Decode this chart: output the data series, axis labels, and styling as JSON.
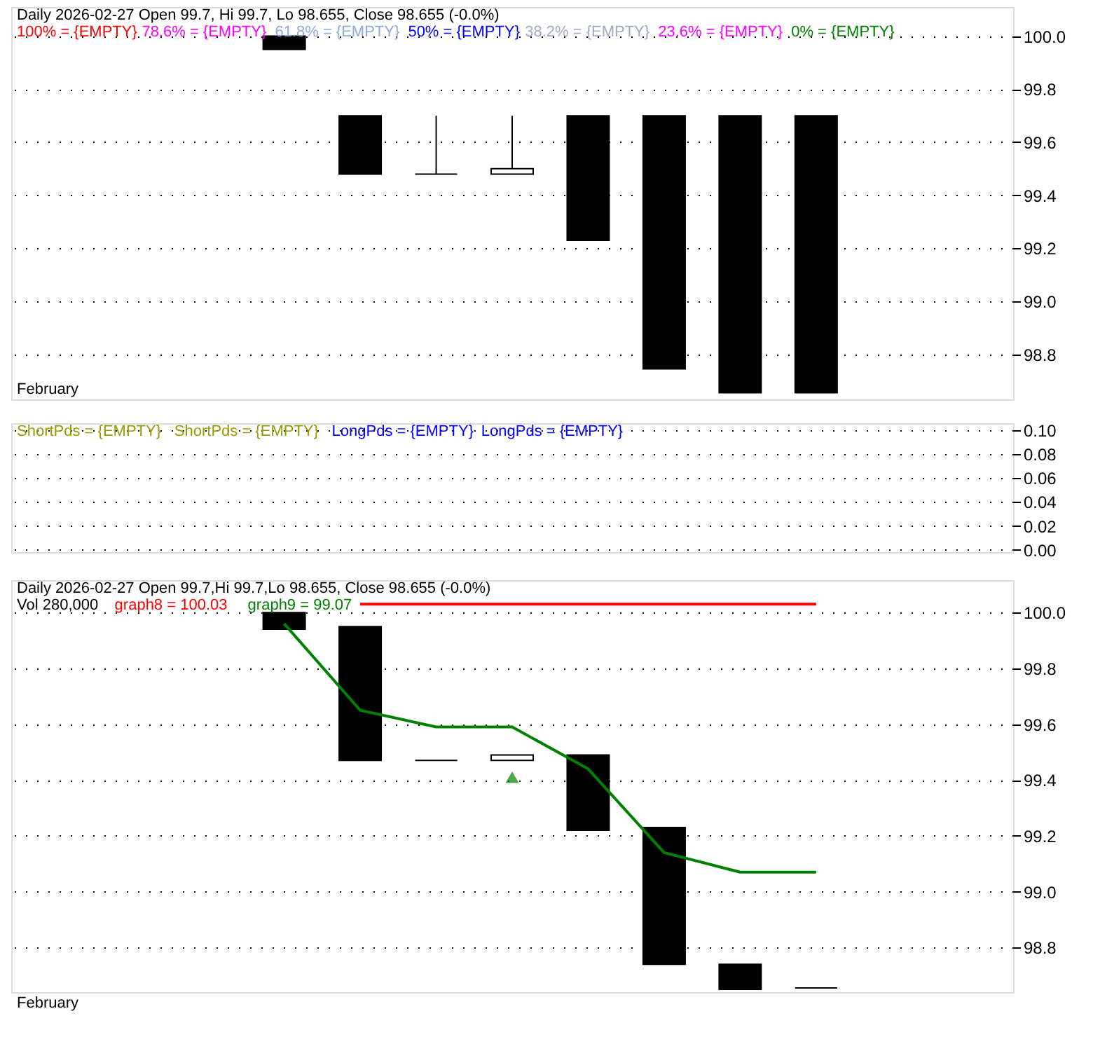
{
  "chart_data": [
    {
      "type": "candlestick",
      "title": "Daily 2026-02-27 Open 99.7, Hi 99.7, Lo 98.655, Close 98.655 (-0.0%)",
      "annotations": [
        "February"
      ],
      "categories": [
        null,
        null,
        null,
        null,
        null,
        null,
        null,
        null,
        null,
        null,
        null,
        null,
        null
      ],
      "ohlc": [
        null,
        null,
        null,
        [
          100.0,
          100.0,
          99.95,
          99.95
        ],
        [
          99.7,
          99.7,
          99.48,
          99.48
        ],
        [
          99.48,
          99.7,
          99.48,
          99.48
        ],
        [
          99.48,
          99.7,
          99.48,
          99.5
        ],
        [
          99.7,
          99.7,
          99.23,
          99.23
        ],
        [
          99.7,
          99.7,
          98.745,
          98.745
        ],
        [
          99.7,
          99.7,
          98.655,
          98.655
        ],
        [
          99.7,
          99.7,
          98.655,
          98.655
        ],
        null,
        null
      ],
      "colors": [
        null,
        null,
        null,
        "#000000",
        "#000000",
        "#000000",
        "#ffffff",
        "#000000",
        "#000000",
        "#000000",
        "#000000",
        null,
        null
      ],
      "series": [
        {
          "name": "100% = {EMPTY}",
          "color": "#ff0000",
          "type": "line",
          "values": [
            null,
            null,
            null,
            null,
            null,
            null,
            null,
            null,
            null,
            null,
            null,
            null,
            null
          ]
        },
        {
          "name": "78.6% = {EMPTY}",
          "color": "#ff00ff",
          "type": "line",
          "values": [
            null,
            null,
            null,
            null,
            null,
            null,
            null,
            null,
            null,
            null,
            null,
            null,
            null
          ]
        },
        {
          "name": "61.8% = {EMPTY}",
          "color": "#8faadc",
          "type": "line",
          "values": [
            null,
            null,
            null,
            null,
            null,
            null,
            null,
            null,
            null,
            null,
            null,
            null,
            null
          ]
        },
        {
          "name": "50% = {EMPTY}",
          "color": "#0000ff",
          "type": "line",
          "values": [
            null,
            null,
            null,
            null,
            null,
            null,
            null,
            null,
            null,
            null,
            null,
            null,
            null
          ]
        },
        {
          "name": "38.2% = {EMPTY}",
          "color": "#a0a8c8",
          "type": "line",
          "values": [
            null,
            null,
            null,
            null,
            null,
            null,
            null,
            null,
            null,
            null,
            null,
            null,
            null
          ]
        },
        {
          "name": "23.6% = {EMPTY}",
          "color": "#ff00ff",
          "type": "line",
          "values": [
            null,
            null,
            null,
            null,
            null,
            null,
            null,
            null,
            null,
            null,
            null,
            null,
            null
          ]
        },
        {
          "name": "0% = {EMPTY}",
          "color": "#008000",
          "type": "line",
          "values": [
            null,
            null,
            null,
            null,
            null,
            null,
            null,
            null,
            null,
            null,
            null,
            null,
            null
          ]
        }
      ],
      "ylim": [
        98.63,
        100.11
      ],
      "yticks": [
        98.8,
        {
          "value": 99.0,
          "label": "99.0"
        },
        99.2,
        99.4,
        99.6,
        99.8,
        {
          "value": 100.0,
          "label": "100.0"
        }
      ],
      "grid": "y",
      "tick_labels": "y"
    },
    {
      "type": "line",
      "categories": [
        null,
        null,
        null,
        null,
        null,
        null,
        null,
        null,
        null,
        null,
        null,
        null,
        null
      ],
      "series": [
        {
          "name": "ShortPds = {EMPTY}",
          "color": "#999900",
          "values": [
            null,
            null,
            null,
            null,
            null,
            null,
            null,
            null,
            null,
            null,
            null,
            null,
            null
          ]
        },
        {
          "name": "ShortPds = {EMPTY}",
          "color": "#999900",
          "values": [
            null,
            null,
            null,
            null,
            null,
            null,
            null,
            null,
            null,
            null,
            null,
            null,
            null
          ]
        },
        {
          "name": "LongPds = {EMPTY}",
          "color": "#0000ff",
          "values": [
            null,
            null,
            null,
            null,
            null,
            null,
            null,
            null,
            null,
            null,
            null,
            null,
            null
          ]
        },
        {
          "name": "LongPds = {EMPTY}",
          "color": "#0000ff",
          "values": [
            null,
            null,
            null,
            null,
            null,
            null,
            null,
            null,
            null,
            null,
            null,
            null,
            null
          ]
        }
      ],
      "ylim": [
        -0.002,
        0.106
      ],
      "yticks": [
        {
          "value": 0,
          "label": "0.00"
        },
        {
          "value": 0.02,
          "label": "0.02"
        },
        {
          "value": 0.04,
          "label": "0.04"
        },
        {
          "value": 0.06,
          "label": "0.06"
        },
        {
          "value": 0.08,
          "label": "0.08"
        },
        {
          "value": 0.1,
          "label": "0.10"
        }
      ],
      "grid": "y",
      "tick_labels": "y"
    },
    {
      "type": "candlestick",
      "title": "Daily 2026-02-27 Open 99.7,Hi 99.7,Lo 98.655, Close 98.655 (-0.0%)",
      "annotations": [
        "Vol 280,000",
        "February"
      ],
      "categories": [
        null,
        null,
        null,
        null,
        null,
        null,
        null,
        null,
        null,
        null,
        null,
        null,
        null
      ],
      "ohlc": [
        null,
        null,
        null,
        [
          100.0,
          100.0,
          99.94,
          99.94
        ],
        [
          99.95,
          99.95,
          99.47,
          99.47
        ],
        [
          99.47,
          99.47,
          99.47,
          99.47
        ],
        [
          99.47,
          99.49,
          99.47,
          99.49
        ],
        [
          99.49,
          99.49,
          99.22,
          99.22
        ],
        [
          99.23,
          99.23,
          98.74,
          98.74
        ],
        [
          98.74,
          98.74,
          98.65,
          98.65
        ],
        [
          98.655,
          98.655,
          98.655,
          98.655
        ],
        null,
        null
      ],
      "colors": [
        null,
        null,
        null,
        "#000000",
        "#000000",
        "#000000",
        "#ffffff",
        "#000000",
        "#000000",
        "#000000",
        "#000000",
        null,
        null
      ],
      "series": [
        {
          "name": "graph8 = 100.03",
          "color": "#ff0000",
          "type": "line",
          "values": [
            null,
            null,
            null,
            null,
            100.03,
            100.03,
            100.03,
            100.03,
            100.03,
            100.03,
            100.03,
            null,
            null
          ]
        },
        {
          "name": "graph9 = 99.07",
          "color": "#008000",
          "type": "line",
          "values": [
            null,
            null,
            null,
            99.96,
            99.65,
            99.59,
            99.59,
            99.44,
            99.14,
            99.07,
            99.07,
            null,
            null
          ]
        },
        {
          "color": "#008000",
          "type": "scatter",
          "marker": "triangle",
          "values": [
            null,
            null,
            null,
            null,
            null,
            null,
            99.41,
            null,
            null,
            null,
            null,
            null,
            null
          ]
        }
      ],
      "ylim": [
        98.64,
        100.116
      ],
      "yticks": [
        98.8,
        {
          "value": 99.0,
          "label": "99.0"
        },
        99.2,
        99.4,
        99.6,
        99.8,
        {
          "value": 100.0,
          "label": "100.0"
        }
      ],
      "grid": "y",
      "tick_labels": "y"
    }
  ]
}
